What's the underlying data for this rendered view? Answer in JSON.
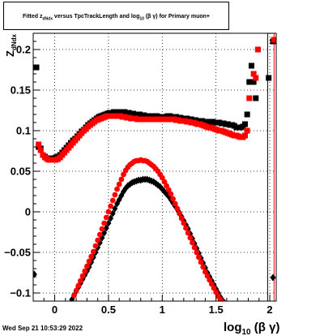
{
  "title": {
    "part1": "Fitted  z",
    "sub1": "dNdx",
    "part2": "  versus TpcTrackLength and log",
    "sub2": "10",
    "part3": " (β γ) for Primary muon+"
  },
  "timestamp": "Wed Sep 21 10:53:29 2022",
  "chart_data": {
    "type": "scatter",
    "title": "Fitted z dNdx versus TpcTrackLength and log10 (β γ) for Primary muon+",
    "xlabel_main": "log",
    "xlabel_sub": "10",
    "xlabel_tail": " (β γ)",
    "ylabel_main": "Z",
    "ylabel_sub": "dNdx",
    "xlim": [
      -0.2,
      2.06
    ],
    "ylim": [
      -0.11,
      0.22
    ],
    "grid": true,
    "x_ticks": [
      0,
      0.5,
      1,
      1.5,
      2
    ],
    "x_tick_labels": [
      "0",
      "0.5",
      "1",
      "1.5",
      "2"
    ],
    "y_ticks": [
      -0.1,
      -0.05,
      0,
      0.05,
      0.1,
      0.15,
      0.2
    ],
    "y_tick_labels": [
      "−0.1",
      "−0.05",
      "0",
      "0.05",
      "0.1",
      "0.15",
      "0.2"
    ],
    "colors": {
      "black": "#000000",
      "red": "#ff0000"
    },
    "series": [
      {
        "color": "black",
        "marker": "square",
        "x": [
          -0.17,
          -0.15,
          -0.13,
          -0.11,
          -0.09,
          -0.07,
          -0.05,
          -0.03,
          -0.01,
          0.01,
          0.03,
          0.05,
          0.07,
          0.09,
          0.11,
          0.13,
          0.15,
          0.17,
          0.19,
          0.21,
          0.23,
          0.25,
          0.27,
          0.29,
          0.31,
          0.33,
          0.35,
          0.37,
          0.39,
          0.41,
          0.43,
          0.45,
          0.47,
          0.49,
          0.51,
          0.53,
          0.55,
          0.57,
          0.59,
          0.61,
          0.63,
          0.65,
          0.67,
          0.69,
          0.71,
          0.73,
          0.75,
          0.77,
          0.79,
          0.81,
          0.83,
          0.85,
          0.87,
          0.89,
          0.91,
          0.93,
          0.95,
          0.97,
          0.99,
          1.01,
          1.03,
          1.05,
          1.07,
          1.09,
          1.11,
          1.13,
          1.15,
          1.17,
          1.19,
          1.21,
          1.23,
          1.25,
          1.27,
          1.29,
          1.31,
          1.33,
          1.35,
          1.37,
          1.39,
          1.41,
          1.43,
          1.45,
          1.47,
          1.49,
          1.51,
          1.53,
          1.55,
          1.57,
          1.59,
          1.61,
          1.63,
          1.65,
          1.67,
          1.69,
          1.71,
          1.73,
          1.75,
          1.77,
          1.79,
          1.81,
          1.83,
          1.85,
          1.87,
          1.99,
          2.03
        ],
        "y": [
          0.178,
          0.08,
          0.078,
          0.07,
          0.068,
          0.066,
          0.066,
          0.066,
          0.066,
          0.067,
          0.068,
          0.07,
          0.073,
          0.076,
          0.079,
          0.082,
          0.085,
          0.088,
          0.09,
          0.093,
          0.096,
          0.099,
          0.101,
          0.104,
          0.107,
          0.109,
          0.111,
          0.113,
          0.115,
          0.117,
          0.118,
          0.119,
          0.12,
          0.121,
          0.122,
          0.122,
          0.123,
          0.123,
          0.123,
          0.123,
          0.123,
          0.123,
          0.122,
          0.122,
          0.121,
          0.121,
          0.12,
          0.12,
          0.12,
          0.119,
          0.119,
          0.118,
          0.118,
          0.118,
          0.118,
          0.118,
          0.118,
          0.117,
          0.117,
          0.117,
          0.117,
          0.118,
          0.118,
          0.117,
          0.117,
          0.117,
          0.116,
          0.116,
          0.115,
          0.115,
          0.115,
          0.114,
          0.114,
          0.113,
          0.113,
          0.112,
          0.112,
          0.112,
          0.111,
          0.111,
          0.111,
          0.111,
          0.111,
          0.11,
          0.11,
          0.11,
          0.109,
          0.109,
          0.108,
          0.108,
          0.107,
          0.107,
          0.106,
          0.104,
          0.104,
          0.104,
          0.105,
          0.108,
          0.12,
          0.16,
          0.18,
          0.16,
          0.14,
          0.165,
          0.21
        ]
      },
      {
        "color": "red",
        "marker": "square",
        "x": [
          -0.15,
          -0.13,
          -0.11,
          -0.09,
          -0.07,
          -0.05,
          -0.03,
          -0.01,
          0.01,
          0.03,
          0.05,
          0.07,
          0.09,
          0.11,
          0.13,
          0.15,
          0.17,
          0.19,
          0.21,
          0.23,
          0.25,
          0.27,
          0.29,
          0.31,
          0.33,
          0.35,
          0.37,
          0.39,
          0.41,
          0.43,
          0.45,
          0.47,
          0.49,
          0.51,
          0.53,
          0.55,
          0.57,
          0.59,
          0.61,
          0.63,
          0.65,
          0.67,
          0.69,
          0.71,
          0.73,
          0.75,
          0.77,
          0.79,
          0.81,
          0.83,
          0.85,
          0.87,
          0.89,
          0.91,
          0.93,
          0.95,
          0.97,
          0.99,
          1.01,
          1.03,
          1.05,
          1.07,
          1.09,
          1.11,
          1.13,
          1.15,
          1.17,
          1.19,
          1.21,
          1.23,
          1.25,
          1.27,
          1.29,
          1.31,
          1.33,
          1.35,
          1.37,
          1.39,
          1.41,
          1.43,
          1.45,
          1.47,
          1.49,
          1.51,
          1.53,
          1.55,
          1.57,
          1.59,
          1.61,
          1.63,
          1.65,
          1.67,
          1.69,
          1.71,
          1.73,
          1.75,
          1.77,
          1.79,
          1.81,
          1.85,
          1.87,
          1.89,
          2.04
        ],
        "y": [
          0.083,
          0.076,
          0.07,
          0.067,
          0.065,
          0.064,
          0.064,
          0.064,
          0.064,
          0.065,
          0.067,
          0.07,
          0.073,
          0.076,
          0.079,
          0.082,
          0.085,
          0.088,
          0.091,
          0.094,
          0.097,
          0.1,
          0.102,
          0.105,
          0.107,
          0.109,
          0.111,
          0.113,
          0.114,
          0.115,
          0.116,
          0.117,
          0.118,
          0.118,
          0.118,
          0.118,
          0.118,
          0.118,
          0.118,
          0.117,
          0.117,
          0.116,
          0.116,
          0.115,
          0.115,
          0.115,
          0.114,
          0.114,
          0.114,
          0.114,
          0.114,
          0.114,
          0.114,
          0.114,
          0.114,
          0.114,
          0.114,
          0.114,
          0.114,
          0.114,
          0.114,
          0.114,
          0.114,
          0.114,
          0.113,
          0.113,
          0.112,
          0.112,
          0.112,
          0.111,
          0.111,
          0.11,
          0.11,
          0.109,
          0.108,
          0.108,
          0.107,
          0.106,
          0.105,
          0.104,
          0.104,
          0.103,
          0.102,
          0.101,
          0.1,
          0.1,
          0.099,
          0.098,
          0.097,
          0.096,
          0.095,
          0.094,
          0.094,
          0.093,
          0.092,
          0.092,
          0.094,
          0.1,
          0.14,
          0.17,
          0.165,
          0.2,
          0.212
        ]
      },
      {
        "color": "black",
        "marker": "diamond",
        "x": [
          -0.19,
          0.16,
          0.18,
          0.2,
          0.22,
          0.24,
          0.26,
          0.28,
          0.3,
          0.32,
          0.34,
          0.36,
          0.38,
          0.4,
          0.42,
          0.44,
          0.46,
          0.48,
          0.5,
          0.52,
          0.54,
          0.56,
          0.58,
          0.6,
          0.62,
          0.64,
          0.66,
          0.68,
          0.7,
          0.72,
          0.74,
          0.76,
          0.78,
          0.8,
          0.82,
          0.84,
          0.86,
          0.88,
          0.9,
          0.92,
          0.94,
          0.96,
          0.98,
          1.0,
          1.02,
          1.04,
          1.06,
          1.08,
          1.1,
          1.12,
          1.14,
          1.16,
          1.18,
          1.2,
          1.22,
          1.24,
          1.26,
          1.28,
          1.3,
          1.32,
          1.34,
          1.36,
          1.38,
          1.4,
          1.42,
          1.44,
          1.46,
          1.48,
          1.5,
          1.52,
          1.54,
          1.56,
          1.58,
          2.03
        ],
        "y": [
          -0.077,
          -0.108,
          -0.103,
          -0.098,
          -0.093,
          -0.088,
          -0.083,
          -0.078,
          -0.073,
          -0.068,
          -0.062,
          -0.056,
          -0.05,
          -0.044,
          -0.038,
          -0.032,
          -0.026,
          -0.02,
          -0.014,
          -0.008,
          -0.002,
          0.004,
          0.01,
          0.015,
          0.02,
          0.025,
          0.029,
          0.032,
          0.034,
          0.036,
          0.037,
          0.038,
          0.039,
          0.039,
          0.04,
          0.04,
          0.04,
          0.039,
          0.038,
          0.037,
          0.035,
          0.033,
          0.031,
          0.028,
          0.025,
          0.022,
          0.019,
          0.015,
          0.011,
          0.007,
          0.003,
          -0.001,
          -0.006,
          -0.011,
          -0.016,
          -0.021,
          -0.027,
          -0.033,
          -0.039,
          -0.045,
          -0.051,
          -0.057,
          -0.063,
          -0.069,
          -0.075,
          -0.08,
          -0.085,
          -0.09,
          -0.095,
          -0.1,
          -0.105,
          -0.109,
          -0.112,
          -0.081
        ]
      },
      {
        "color": "red",
        "marker": "circle",
        "x": [
          0.18,
          0.2,
          0.22,
          0.24,
          0.26,
          0.28,
          0.3,
          0.32,
          0.34,
          0.36,
          0.38,
          0.4,
          0.42,
          0.44,
          0.46,
          0.48,
          0.5,
          0.52,
          0.54,
          0.56,
          0.58,
          0.6,
          0.62,
          0.64,
          0.66,
          0.68,
          0.7,
          0.72,
          0.74,
          0.76,
          0.78,
          0.8,
          0.82,
          0.84,
          0.86,
          0.88,
          0.9,
          0.92,
          0.94,
          0.96,
          0.98,
          1.0,
          1.02,
          1.04,
          1.06,
          1.08,
          1.1,
          1.12,
          1.14,
          1.16,
          1.18,
          1.2,
          1.22,
          1.24,
          1.26,
          1.28,
          1.3,
          1.32,
          1.34,
          1.36,
          1.38,
          1.4,
          1.42,
          1.44,
          1.46,
          1.48,
          1.5,
          1.52,
          1.54,
          1.56,
          1.58
        ],
        "y": [
          -0.103,
          -0.097,
          -0.091,
          -0.085,
          -0.079,
          -0.073,
          -0.067,
          -0.061,
          -0.055,
          -0.049,
          -0.042,
          -0.035,
          -0.028,
          -0.021,
          -0.014,
          -0.007,
          0.0,
          0.007,
          0.014,
          0.021,
          0.028,
          0.034,
          0.04,
          0.046,
          0.051,
          0.055,
          0.058,
          0.06,
          0.062,
          0.063,
          0.063,
          0.064,
          0.063,
          0.063,
          0.062,
          0.06,
          0.058,
          0.056,
          0.053,
          0.05,
          0.046,
          0.042,
          0.037,
          0.032,
          0.027,
          0.022,
          0.016,
          0.01,
          0.004,
          -0.002,
          -0.008,
          -0.014,
          -0.02,
          -0.026,
          -0.032,
          -0.038,
          -0.044,
          -0.05,
          -0.056,
          -0.062,
          -0.068,
          -0.074,
          -0.079,
          -0.084,
          -0.089,
          -0.094,
          -0.099,
          -0.104,
          -0.108,
          -0.111,
          -0.113
        ]
      }
    ],
    "vertical_lines": [
      {
        "x": 1.98,
        "color": "black"
      },
      {
        "x": 2.04,
        "color": "red"
      }
    ]
  }
}
